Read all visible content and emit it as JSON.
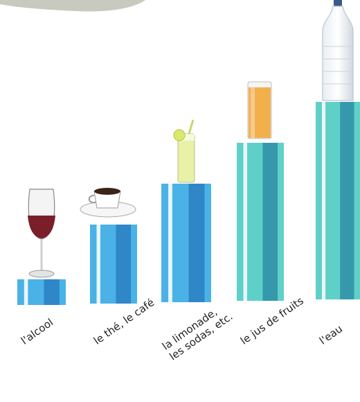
{
  "chart_data": {
    "type": "bar",
    "title": "",
    "xlabel": "",
    "ylabel": "",
    "categories": [
      "l'alcool",
      "le thé, le café",
      "la limonade, les sodas, etc.",
      "le jus de fruits",
      "l'eau"
    ],
    "category_label_lines": [
      [
        "l'alcool"
      ],
      [
        "le thé, le café"
      ],
      [
        "la limonade,",
        "les sodas, etc."
      ],
      [
        "le jus de fruits"
      ],
      [
        "l'eau"
      ]
    ],
    "values": [
      1,
      2,
      3,
      4,
      5
    ],
    "ylim": [
      0,
      5
    ],
    "grid": false,
    "legend": "none",
    "item_icons": [
      "wine-glass-icon",
      "coffee-cup-icon",
      "lemonade-glass-icon",
      "juice-glass-icon",
      "water-bottle-icon"
    ],
    "colors": {
      "bar_light": "#5fd0c8",
      "bar_main": "#4ab8b8",
      "bar_dark": "#2f8fa6",
      "bar_blue_light": "#4ab2e6",
      "bar_blue_dark": "#2a7fc2",
      "wine": "#7a1f2a",
      "juice": "#f2a93b",
      "lemonade": "#e9f0a8",
      "coffee": "#3a2417"
    }
  }
}
